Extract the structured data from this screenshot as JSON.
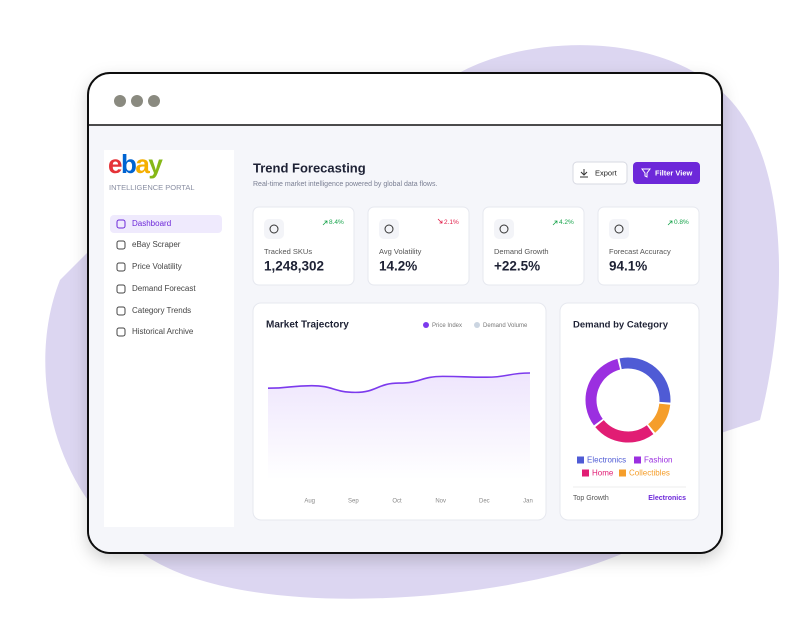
{
  "sidebar": {
    "logo": "ebay",
    "subtitle": "INTELLIGENCE PORTAL",
    "menu": [
      "Dashboard",
      "eBay Scraper",
      "Price Volatility",
      "Demand Forecast",
      "Category Trends",
      "Historical Archive"
    ],
    "active": 0
  },
  "header": {
    "title": "Trend Forecasting",
    "subtitle": "Real-time market intelligence powered by global data flows.",
    "buttons": [
      "Export",
      "Filter View"
    ]
  },
  "stats": [
    {
      "label": "Tracked SKUs",
      "value": "1,248,302",
      "change": "8.4%",
      "trend": "up"
    },
    {
      "label": "Avg Volatility",
      "value": "14.2%",
      "change": "2.1%",
      "trend": "down"
    },
    {
      "label": "Demand Growth",
      "value": "+22.5%",
      "change": "4.2%",
      "trend": "up"
    },
    {
      "label": "Forecast Accuracy",
      "value": "94.1%",
      "change": "0.8%",
      "trend": "up"
    }
  ],
  "trajectory": {
    "type": "line",
    "title": "Market Trajectory",
    "categories": [
      null,
      "Aug",
      "Sep",
      "Oct",
      "Nov",
      "Dec",
      "Jan"
    ],
    "series": [
      {
        "name": "Price Index",
        "color": "#7c3aed",
        "values": [
          109,
          112,
          104,
          115,
          123,
          122,
          127
        ]
      },
      {
        "name": "Demand Volume",
        "color": "#cbd5e1",
        "values": [
          null,
          null,
          null,
          null,
          null,
          null,
          null
        ]
      }
    ]
  },
  "category_demand": {
    "type": "pie",
    "title": "Demand by Category",
    "categories": [
      "Electronics",
      "Fashion",
      "Home",
      "Collectibles"
    ],
    "values": [
      30,
      32,
      25,
      13
    ],
    "colors": [
      "#4f5bd5",
      "#9b2fe0",
      "#e11d74",
      "#f59e2b"
    ],
    "footer_label": "Top Growth",
    "footer_value": "Electronics"
  }
}
